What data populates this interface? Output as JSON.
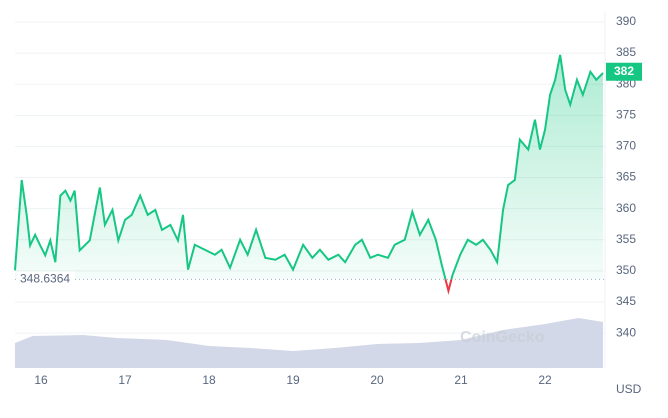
{
  "chart_data": {
    "type": "line",
    "x": [
      15.69,
      15.77,
      15.83,
      15.87,
      15.93,
      15.99,
      16.05,
      16.11,
      16.17,
      16.23,
      16.29,
      16.35,
      16.4,
      16.46,
      16.58,
      16.7,
      16.76,
      16.85,
      16.92,
      17.0,
      17.08,
      17.18,
      17.27,
      17.36,
      17.44,
      17.54,
      17.63,
      17.69,
      17.75,
      17.83,
      17.95,
      18.07,
      18.15,
      18.25,
      18.37,
      18.46,
      18.56,
      18.67,
      18.79,
      18.9,
      19.0,
      19.12,
      19.23,
      19.32,
      19.42,
      19.54,
      19.62,
      19.74,
      19.82,
      19.92,
      20.01,
      20.13,
      20.21,
      20.33,
      20.42,
      20.51,
      20.61,
      20.7,
      20.77,
      20.85,
      20.9,
      20.99,
      21.08,
      21.18,
      21.26,
      21.35,
      21.43,
      21.5,
      21.56,
      21.64,
      21.7,
      21.8,
      21.88,
      21.94,
      22.0,
      22.06,
      22.12,
      22.18,
      22.24,
      22.3,
      22.38,
      22.45,
      22.54,
      22.61,
      22.69
    ],
    "series": [
      {
        "name": "Price",
        "color": "#16c784",
        "below_color": "#ea3943",
        "values": [
          350.1,
          364.6,
          358.9,
          354.1,
          355.8,
          354.1,
          352.5,
          354.9,
          351.4,
          362.1,
          362.9,
          361.3,
          362.9,
          353.3,
          354.9,
          363.4,
          357.4,
          359.8,
          354.9,
          358.2,
          359.0,
          362.1,
          359.0,
          359.8,
          356.6,
          357.4,
          354.9,
          359.0,
          350.2,
          354.2,
          353.4,
          352.6,
          353.4,
          350.5,
          355.0,
          352.6,
          356.6,
          352.1,
          351.8,
          352.6,
          350.2,
          354.2,
          352.1,
          353.4,
          351.8,
          352.6,
          351.4,
          354.2,
          355.0,
          352.1,
          352.6,
          352.1,
          354.2,
          355.0,
          359.5,
          355.8,
          358.2,
          355.0,
          351.0,
          346.8,
          349.4,
          352.6,
          355.0,
          354.2,
          355.0,
          353.4,
          351.4,
          359.8,
          363.8,
          364.6,
          371.1,
          369.5,
          374.3,
          369.5,
          372.7,
          378.3,
          380.7,
          384.7,
          379.1,
          376.7,
          380.7,
          378.3,
          382.0,
          380.7,
          381.8
        ]
      }
    ],
    "baseline": {
      "value": 348.6364,
      "label": "348.6364"
    },
    "current_price": {
      "value": 382,
      "label": "382"
    },
    "volume": {
      "x": [
        15.69,
        15.9,
        16.5,
        16.9,
        17.5,
        18.0,
        18.5,
        19.0,
        19.5,
        20.0,
        20.5,
        21.0,
        21.5,
        22.0,
        22.4,
        22.69
      ],
      "values": [
        25,
        32,
        33,
        30,
        28,
        22,
        20,
        17,
        20,
        24,
        25,
        28,
        38,
        44,
        50,
        46
      ],
      "color": "#d3d8e8"
    },
    "xlim": [
      15.69,
      22.69
    ],
    "xticks": [
      16,
      17,
      18,
      19,
      20,
      21,
      22
    ],
    "ylim": [
      334.4,
      391.6
    ],
    "yticks": [
      340,
      345,
      350,
      355,
      360,
      365,
      370,
      375,
      380,
      385,
      390
    ],
    "currency": "USD",
    "watermark": "CoinGecko",
    "grid": true
  }
}
